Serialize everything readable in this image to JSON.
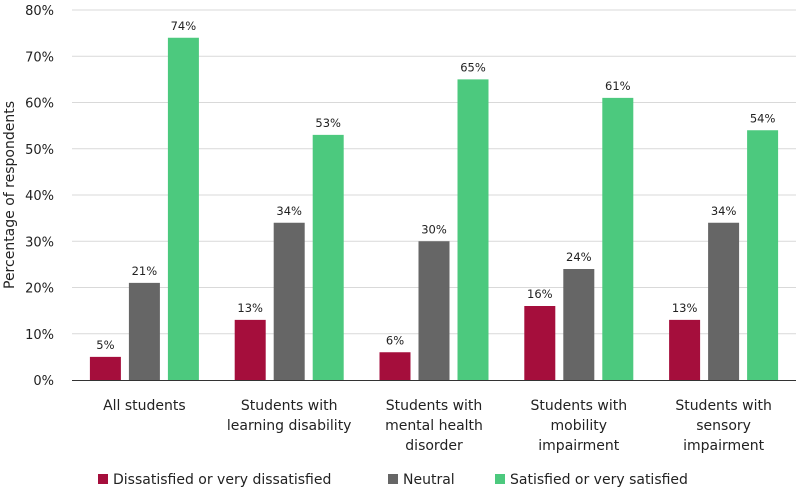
{
  "chart_data": {
    "type": "bar",
    "title": "",
    "xlabel": "",
    "ylabel": "Percentage of respondents",
    "ylim": [
      0,
      80
    ],
    "yticks": [
      "0%",
      "10%",
      "20%",
      "30%",
      "40%",
      "50%",
      "60%",
      "70%",
      "80%"
    ],
    "grid": true,
    "legend_position": "bottom",
    "categories": [
      [
        "All students"
      ],
      [
        "Students with",
        "learning disability"
      ],
      [
        "Students with",
        "mental health",
        "disorder"
      ],
      [
        "Students with",
        "mobility",
        "impairment"
      ],
      [
        "Students with",
        "sensory",
        "impairment"
      ]
    ],
    "series": [
      {
        "name": "Dissatisfied or very dissatisfied",
        "color": "#a50e3c",
        "values": [
          5,
          13,
          6,
          16,
          13
        ]
      },
      {
        "name": "Neutral",
        "color": "#666666",
        "values": [
          21,
          34,
          30,
          24,
          34
        ]
      },
      {
        "name": "Satisfied or very satisfied",
        "color": "#4cc97e",
        "values": [
          74,
          53,
          65,
          61,
          54
        ]
      }
    ]
  }
}
